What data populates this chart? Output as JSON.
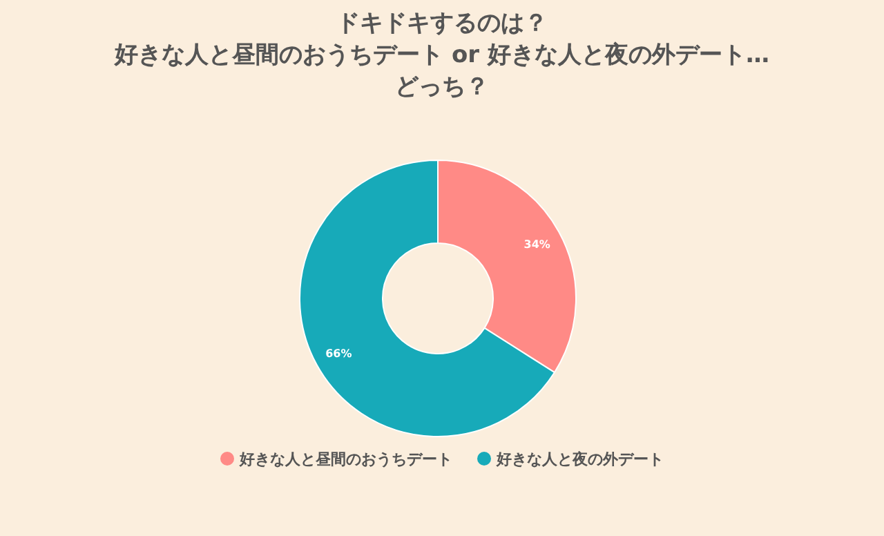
{
  "chart_data": {
    "type": "donut",
    "title": "ドキドキするのは？",
    "subtitle": "好きな人と昼間のおうちデート or 好きな人と夜の外デート…どっち？",
    "categories": [
      "好きな人と昼間のおうちデート",
      "好きな人と夜の外デート"
    ],
    "values": [
      34,
      66
    ],
    "colors": [
      "#ff8a86",
      "#17aab9"
    ],
    "value_labels": [
      "34%",
      "66%"
    ],
    "legend": "bottom"
  }
}
